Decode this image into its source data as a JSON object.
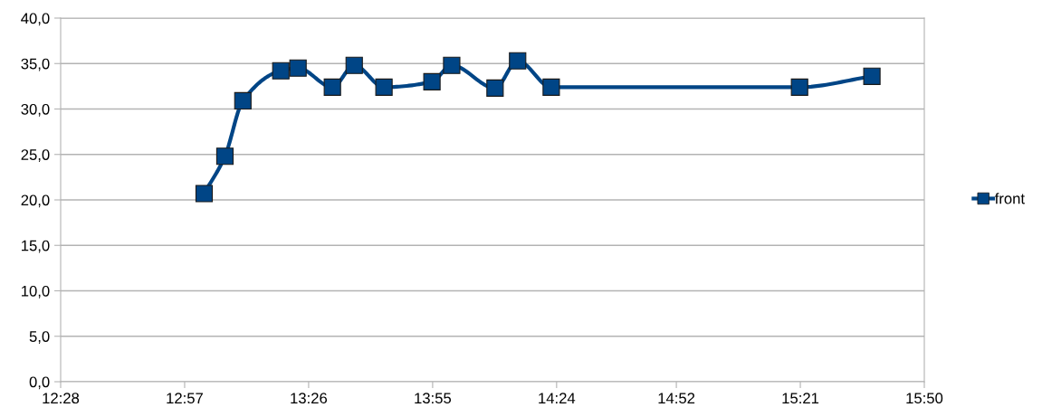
{
  "chart_data": {
    "type": "line",
    "x": [
      13.026,
      13.107,
      13.177,
      13.325,
      13.392,
      13.526,
      13.611,
      13.727,
      13.914,
      13.991,
      14.16,
      14.248,
      14.379,
      15.347,
      15.629
    ],
    "series": [
      {
        "name": "front",
        "color": "#004586",
        "values": [
          20.7,
          24.8,
          30.9,
          34.2,
          34.5,
          32.4,
          34.8,
          32.4,
          33.0,
          34.8,
          32.3,
          35.3,
          32.4,
          32.4,
          33.6
        ]
      }
    ],
    "xlim": [
      12.4667,
      15.8333
    ],
    "xticks": [
      {
        "value": 12.4667,
        "label": "12:28"
      },
      {
        "value": 12.95,
        "label": "12:57"
      },
      {
        "value": 13.4333,
        "label": "13:26"
      },
      {
        "value": 13.9167,
        "label": "13:55"
      },
      {
        "value": 14.4,
        "label": "14:24"
      },
      {
        "value": 14.8667,
        "label": "14:52"
      },
      {
        "value": 15.35,
        "label": "15:21"
      },
      {
        "value": 15.8333,
        "label": "15:50"
      }
    ],
    "ylim": [
      0,
      40
    ],
    "yticks": [
      {
        "value": 0,
        "label": "0,0"
      },
      {
        "value": 5,
        "label": "5,0"
      },
      {
        "value": 10,
        "label": "10,0"
      },
      {
        "value": 15,
        "label": "15,0"
      },
      {
        "value": 20,
        "label": "20,0"
      },
      {
        "value": 25,
        "label": "25,0"
      },
      {
        "value": 30,
        "label": "30,0"
      },
      {
        "value": 35,
        "label": "35,0"
      },
      {
        "value": 40,
        "label": "40,0"
      }
    ],
    "grid": "y",
    "legend": "right",
    "marker": "square",
    "line_style": "solid"
  }
}
